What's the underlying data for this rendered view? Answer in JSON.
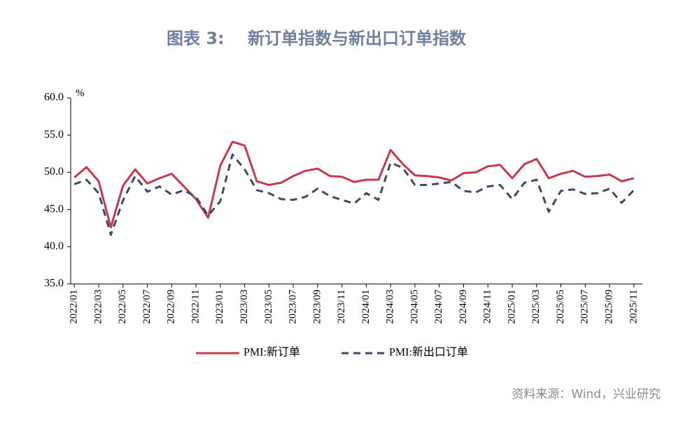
{
  "chart_data": {
    "type": "line",
    "figure_label": "图表 3:",
    "title": "新订单指数与新出口订单指数",
    "y_unit": "%",
    "source": "资料来源：Wind，兴业研究",
    "categories": [
      "2022/01",
      null,
      "2022/03",
      null,
      "2022/05",
      null,
      "2022/07",
      null,
      "2022/09",
      null,
      "2022/11",
      null,
      "2023/01",
      null,
      "2023/03",
      null,
      "2023/05",
      null,
      "2023/07",
      null,
      "2023/09",
      null,
      "2023/11",
      null,
      "2024/01",
      null,
      "2024/03",
      null,
      "2024/05",
      null,
      "2024/07",
      null,
      "2024/09",
      null,
      "2024/11",
      null,
      "2025/01",
      null,
      "2025/03",
      null,
      "2025/05",
      null,
      "2025/07",
      null,
      "2025/09",
      null,
      "2025/11"
    ],
    "series": [
      {
        "name": "PMI:新订单",
        "color": "#c8374d",
        "dash": false,
        "values": [
          49.3,
          50.7,
          48.8,
          42.6,
          48.2,
          50.4,
          48.5,
          49.2,
          49.8,
          48.1,
          46.4,
          43.9,
          50.9,
          54.1,
          53.6,
          48.8,
          48.3,
          48.6,
          49.5,
          50.2,
          50.5,
          49.5,
          49.4,
          48.7,
          49.0,
          49.0,
          53.0,
          51.1,
          49.6,
          49.5,
          49.3,
          48.9,
          49.9,
          50.0,
          50.8,
          51.0,
          49.2,
          51.1,
          51.8,
          49.2,
          49.8,
          50.2,
          49.4,
          49.5,
          49.7,
          48.8,
          49.2
        ]
      },
      {
        "name": "PMI:新出口订单",
        "color": "#3b4a66",
        "dash": true,
        "values": [
          48.4,
          49.0,
          47.2,
          41.6,
          46.2,
          49.5,
          47.4,
          48.1,
          47.0,
          47.6,
          46.7,
          44.2,
          46.1,
          52.4,
          50.4,
          47.6,
          47.2,
          46.4,
          46.3,
          46.7,
          47.8,
          46.8,
          46.3,
          45.8,
          47.2,
          46.3,
          51.3,
          50.6,
          48.3,
          48.3,
          48.5,
          48.7,
          47.5,
          47.3,
          48.1,
          48.3,
          46.4,
          48.6,
          49.0,
          44.7,
          47.5,
          47.7,
          47.1,
          47.2,
          47.8,
          45.9,
          47.6
        ]
      }
    ],
    "ylim": [
      35,
      60
    ],
    "yticks": [
      {
        "value": 35,
        "label": "35.0"
      },
      {
        "value": 40,
        "label": "40.0"
      },
      {
        "value": 45,
        "label": "45.0"
      },
      {
        "value": 50,
        "label": "50.0"
      },
      {
        "value": 55,
        "label": "55.0"
      },
      {
        "value": 60,
        "label": "60.0"
      }
    ],
    "grid": false,
    "legend": "bottom"
  }
}
